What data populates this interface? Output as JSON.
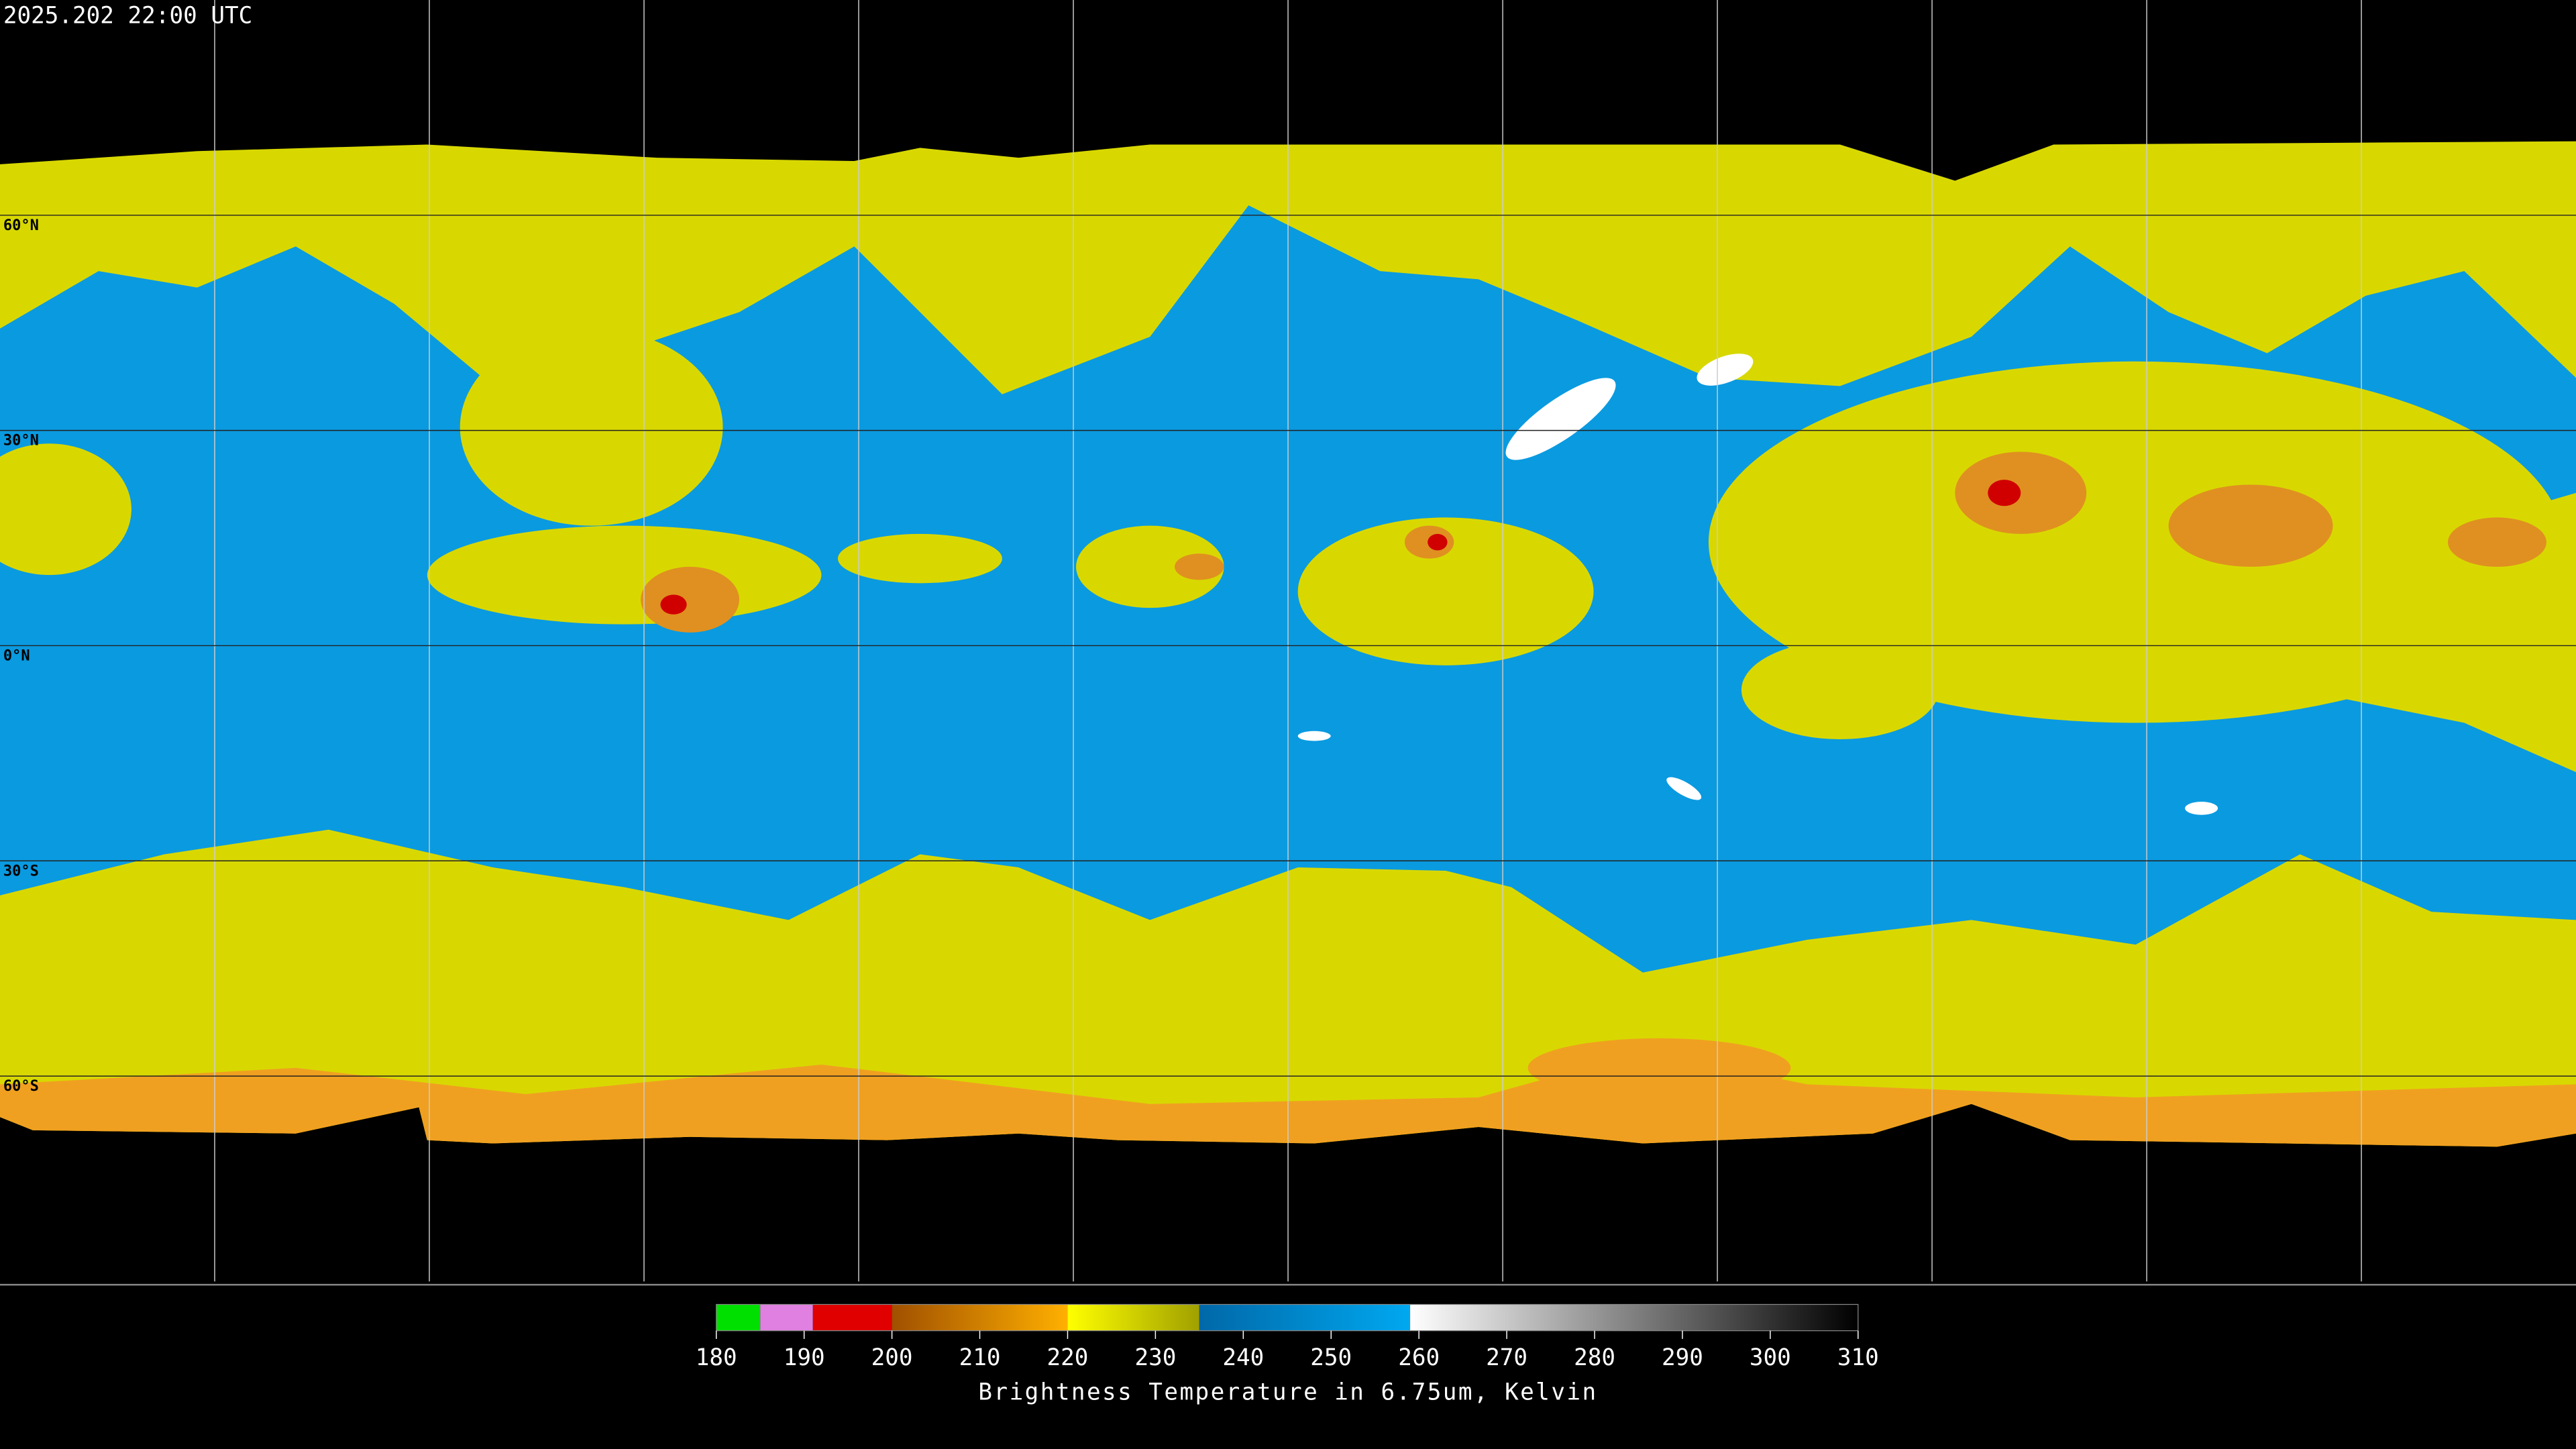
{
  "timestamp": "2025.202 22:00 UTC",
  "latitude_labels": [
    "60°N",
    "30°N",
    "0°N",
    "30°S",
    "60°S"
  ],
  "colorbar": {
    "title": "Brightness Temperature in 6.75um, Kelvin",
    "range": [
      180,
      310
    ],
    "ticks": [
      180,
      190,
      200,
      210,
      220,
      230,
      240,
      250,
      260,
      270,
      280,
      290,
      300,
      310
    ],
    "segments": [
      {
        "from": 180,
        "to": 185,
        "colors": [
          "#00e000",
          "#00e000"
        ]
      },
      {
        "from": 185,
        "to": 191,
        "colors": [
          "#e080e0",
          "#e080e0"
        ]
      },
      {
        "from": 191,
        "to": 200,
        "colors": [
          "#e00000",
          "#e00000"
        ]
      },
      {
        "from": 200,
        "to": 220,
        "colors": [
          "#a05000",
          "#ffb000"
        ]
      },
      {
        "from": 220,
        "to": 235,
        "colors": [
          "#ffff00",
          "#a0a000"
        ]
      },
      {
        "from": 235,
        "to": 259,
        "colors": [
          "#0068a8",
          "#00a8f0"
        ]
      },
      {
        "from": 259,
        "to": 310,
        "colors": [
          "#ffffff",
          "#000000"
        ]
      }
    ]
  }
}
